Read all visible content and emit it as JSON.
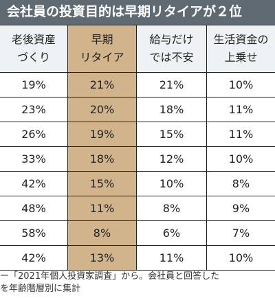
{
  "title": "会社員の投資目的は早期リタイアが２位",
  "chart_data": {
    "type": "table",
    "columns": [
      "老後資産\nづくり",
      "早期\nリタイア",
      "給与だけ\nでは不安",
      "生活資金の\n上乗せ"
    ],
    "rows": [
      [
        "19%",
        "21%",
        "21%",
        "10%"
      ],
      [
        "23%",
        "20%",
        "18%",
        "11%"
      ],
      [
        "26%",
        "19%",
        "15%",
        "11%"
      ],
      [
        "33%",
        "18%",
        "12%",
        "10%"
      ],
      [
        "42%",
        "15%",
        "10%",
        "8%"
      ],
      [
        "48%",
        "11%",
        "8%",
        "9%"
      ],
      [
        "58%",
        "8%",
        "6%",
        "7%"
      ],
      [
        "42%",
        "13%",
        "11%",
        "10%"
      ]
    ],
    "highlight_column_color": "#d2b48c",
    "header_background": "#eef2f4"
  },
  "footnote": {
    "line1": "ー「2021年個人投資家調査」から。会社員と回答した",
    "line2": "を年齢階層別に集計"
  }
}
